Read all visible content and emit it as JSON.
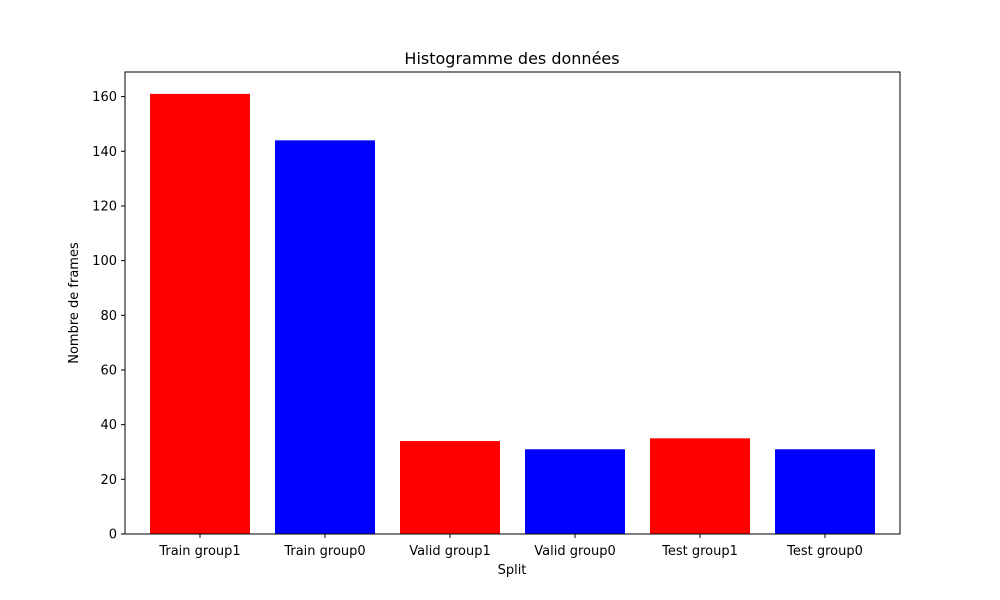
{
  "chart_data": {
    "type": "bar",
    "title": "Histogramme des données",
    "xlabel": "Split",
    "ylabel": "Nombre de frames",
    "categories": [
      "Train group1",
      "Train group0",
      "Valid group1",
      "Valid group0",
      "Test group1",
      "Test group0"
    ],
    "values": [
      161,
      144,
      34,
      31,
      35,
      31
    ],
    "bar_colors": [
      "#ff0000",
      "#0000ff",
      "#ff0000",
      "#0000ff",
      "#ff0000",
      "#0000ff"
    ],
    "ylim": [
      0,
      169
    ],
    "yticks": [
      0,
      20,
      40,
      60,
      80,
      100,
      120,
      140,
      160
    ],
    "grid": false
  }
}
